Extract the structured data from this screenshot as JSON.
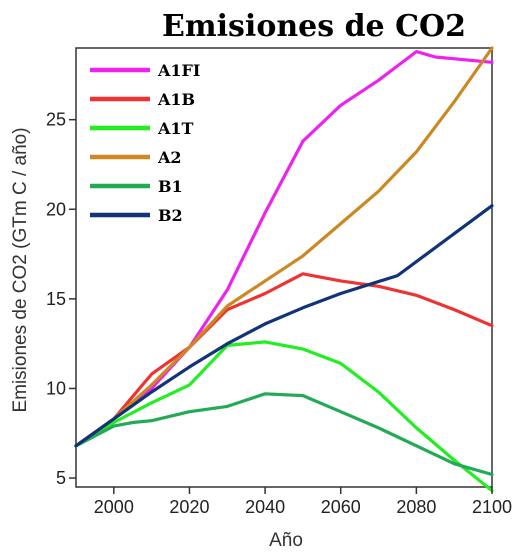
{
  "chart_data": {
    "type": "line",
    "title": "Emisiones de CO2",
    "xlabel": "Año",
    "ylabel": "Emisiones de CO2 (GTm C / año)",
    "xlim": [
      1990,
      2100
    ],
    "ylim": [
      4.5,
      29
    ],
    "xticks": [
      2000,
      2020,
      2040,
      2060,
      2080,
      2100
    ],
    "yticks": [
      5,
      10,
      15,
      20,
      25
    ],
    "grid": false,
    "legend": "top-left",
    "series": [
      {
        "name": "A1FI",
        "color": "#ee22ee",
        "x": [
          1990,
          2000,
          2010,
          2020,
          2030,
          2040,
          2050,
          2060,
          2070,
          2080,
          2085,
          2100
        ],
        "y": [
          6.8,
          8.3,
          10.0,
          12.3,
          15.5,
          19.8,
          23.8,
          25.8,
          27.2,
          28.8,
          28.5,
          28.2
        ]
      },
      {
        "name": "A1B",
        "color": "#ee3333",
        "x": [
          1990,
          2000,
          2010,
          2020,
          2030,
          2040,
          2050,
          2060,
          2070,
          2080,
          2090,
          2100
        ],
        "y": [
          6.8,
          8.3,
          10.8,
          12.3,
          14.4,
          15.3,
          16.4,
          16.0,
          15.7,
          15.2,
          14.4,
          13.5
        ]
      },
      {
        "name": "A1T",
        "color": "#22ee22",
        "x": [
          1990,
          2000,
          2010,
          2020,
          2030,
          2040,
          2050,
          2060,
          2070,
          2080,
          2090,
          2100
        ],
        "y": [
          6.8,
          8.1,
          9.2,
          10.2,
          12.4,
          12.6,
          12.2,
          11.4,
          9.8,
          7.8,
          6.0,
          4.3
        ]
      },
      {
        "name": "A2",
        "color": "#cc8822",
        "x": [
          1990,
          2000,
          2010,
          2020,
          2030,
          2040,
          2050,
          2060,
          2070,
          2080,
          2090,
          2100
        ],
        "y": [
          6.8,
          8.3,
          10.2,
          12.3,
          14.6,
          16.0,
          17.4,
          19.2,
          21.0,
          23.2,
          26.0,
          29.0
        ]
      },
      {
        "name": "B1",
        "color": "#22aa55",
        "x": [
          1990,
          2000,
          2005,
          2010,
          2020,
          2030,
          2040,
          2050,
          2060,
          2070,
          2080,
          2090,
          2100
        ],
        "y": [
          6.8,
          7.9,
          8.1,
          8.2,
          8.7,
          9.0,
          9.7,
          9.6,
          8.7,
          7.8,
          6.8,
          5.8,
          5.2
        ]
      },
      {
        "name": "B2",
        "color": "#113377",
        "x": [
          1990,
          2000,
          2010,
          2020,
          2030,
          2040,
          2050,
          2060,
          2075,
          2100
        ],
        "y": [
          6.8,
          8.3,
          9.8,
          11.2,
          12.5,
          13.6,
          14.5,
          15.3,
          16.3,
          20.2
        ]
      }
    ]
  }
}
